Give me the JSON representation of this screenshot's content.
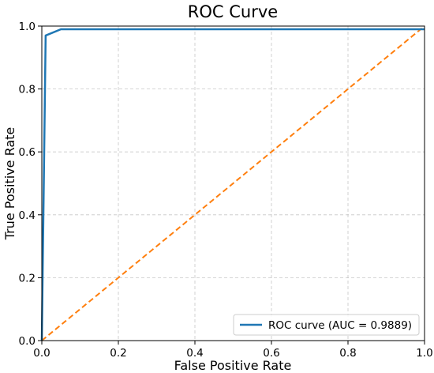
{
  "chart_data": {
    "type": "line",
    "title": "ROC Curve",
    "xlabel": "False Positive Rate",
    "ylabel": "True Positive Rate",
    "xlim": [
      0.0,
      1.0
    ],
    "ylim": [
      0.0,
      1.0
    ],
    "xticks": [
      "0.0",
      "0.2",
      "0.4",
      "0.6",
      "0.8",
      "1.0"
    ],
    "yticks": [
      "0.0",
      "0.2",
      "0.4",
      "0.6",
      "0.8",
      "1.0"
    ],
    "grid": true,
    "legend_position": "lower-right",
    "series": [
      {
        "name": "ROC curve (AUC = 0.9889)",
        "color": "#1f77b4",
        "style": "solid",
        "x": [
          0.0,
          0.0,
          0.01,
          0.05,
          1.0
        ],
        "y": [
          0.0,
          0.0,
          0.97,
          0.99,
          0.99
        ]
      },
      {
        "color": "#ff7f0e",
        "style": "dashed",
        "x": [
          0.0,
          1.0
        ],
        "y": [
          0.0,
          1.0
        ]
      }
    ]
  }
}
